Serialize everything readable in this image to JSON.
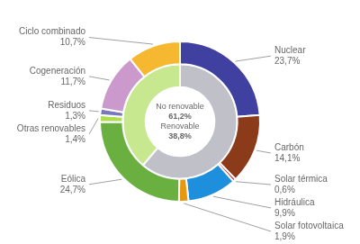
{
  "chart_data": {
    "type": "doughnut",
    "series": [
      {
        "categories": [
          "Nuclear",
          "Carbón",
          "Solar térmica",
          "Hidráulica",
          "Solar fotovoltaica",
          "Eólica",
          "Otras renovables",
          "Residuos",
          "Cogeneración",
          "Ciclo combinado"
        ],
        "values": [
          23.7,
          14.1,
          0.6,
          9.9,
          1.9,
          24.7,
          1.4,
          1.3,
          11.7,
          10.7
        ],
        "value_labels": [
          "23,7%",
          "14,1%",
          "0,6%",
          "9,9%",
          "1,9%",
          "24,7%",
          "1,4%",
          "1,3%",
          "11,7%",
          "10,7%"
        ],
        "colors": [
          "#4040a0",
          "#8b3a1a",
          "#dd2222",
          "#1e8fdd",
          "#e8980e",
          "#6ab040",
          "#aedd50",
          "#7878bb",
          "#cc99cc",
          "#f5b830"
        ]
      },
      {
        "categories": [
          "No renovable",
          "Renovable"
        ],
        "values": [
          61.2,
          38.8
        ],
        "value_labels": [
          "61,2%",
          "38,8%"
        ],
        "colors": [
          "#c0c0c8",
          "#c8e890"
        ]
      }
    ],
    "legend": false,
    "data_labels": true
  }
}
